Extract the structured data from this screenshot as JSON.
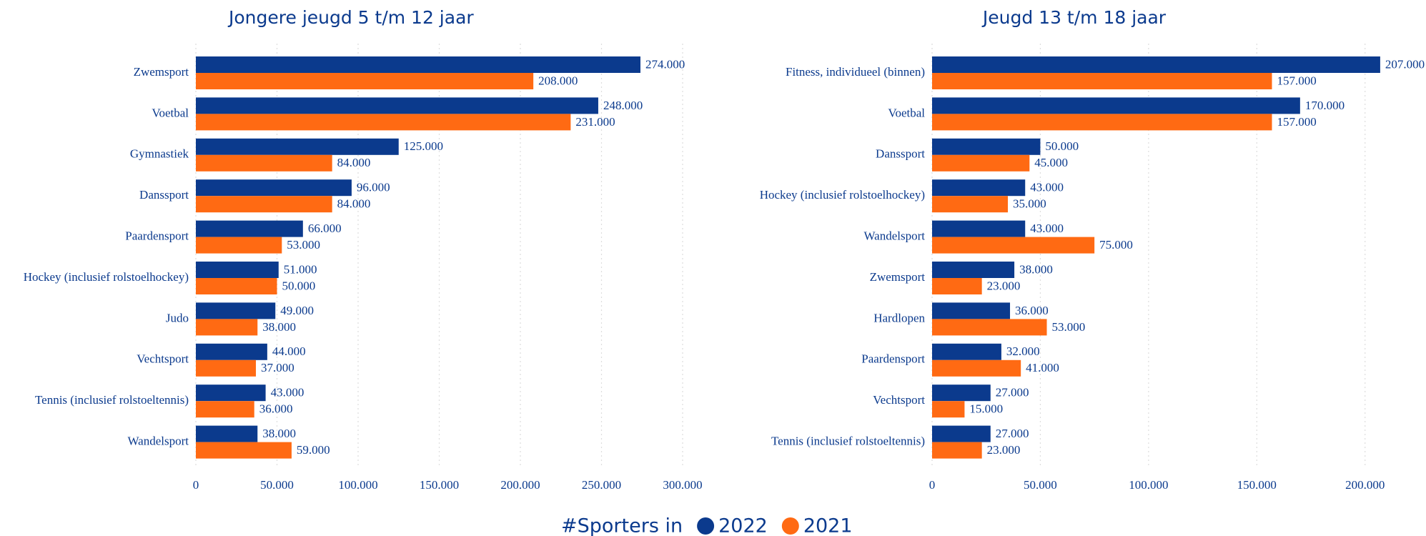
{
  "chart_data": [
    {
      "type": "bar",
      "orientation": "horizontal",
      "title": "Jongere jeugd 5 t/m 12 jaar",
      "legend_title": "#Sporters in",
      "categories": [
        "Zwemsport",
        "Voetbal",
        "Gymnastiek",
        "Danssport",
        "Paardensport",
        "Hockey (inclusief rolstoelhockey)",
        "Judo",
        "Vechtsport",
        "Tennis (inclusief rolstoeltennis)",
        "Wandelsport"
      ],
      "series": [
        {
          "name": "2022",
          "color": "#0b3a8d",
          "values": [
            274000,
            248000,
            125000,
            96000,
            66000,
            51000,
            49000,
            44000,
            43000,
            38000
          ],
          "value_labels": [
            "274.000",
            "248.000",
            "125.000",
            "96.000",
            "66.000",
            "51.000",
            "49.000",
            "44.000",
            "43.000",
            "38.000"
          ]
        },
        {
          "name": "2021",
          "color": "#ff6a13",
          "values": [
            208000,
            231000,
            84000,
            84000,
            53000,
            50000,
            38000,
            37000,
            36000,
            59000
          ],
          "value_labels": [
            "208.000",
            "231.000",
            "84.000",
            "84.000",
            "53.000",
            "50.000",
            "38.000",
            "37.000",
            "36.000",
            "59.000"
          ]
        }
      ],
      "xlim": [
        0,
        300000
      ],
      "xticks": [
        0,
        {
          "value": 50000,
          "label": "50.000"
        },
        {
          "value": 100000,
          "label": "100.000"
        },
        {
          "value": 150000,
          "label": "150.000"
        },
        {
          "value": 200000,
          "label": "200.000"
        },
        {
          "value": 250000,
          "label": "250.000"
        },
        {
          "value": 300000,
          "label": "300.000"
        }
      ],
      "grid": true
    },
    {
      "type": "bar",
      "orientation": "horizontal",
      "title": "Jeugd 13 t/m 18 jaar",
      "categories": [
        "Fitness, individueel (binnen)",
        "Voetbal",
        "Danssport",
        "Hockey (inclusief rolstoelhockey)",
        "Wandelsport",
        "Zwemsport",
        "Hardlopen",
        "Paardensport",
        "Vechtsport",
        "Tennis (inclusief rolstoeltennis)"
      ],
      "series": [
        {
          "name": "2022",
          "color": "#0b3a8d",
          "values": [
            207000,
            170000,
            50000,
            43000,
            43000,
            38000,
            36000,
            32000,
            27000,
            27000
          ],
          "value_labels": [
            "207.000",
            "170.000",
            "50.000",
            "43.000",
            "43.000",
            "38.000",
            "36.000",
            "32.000",
            "27.000",
            "27.000"
          ]
        },
        {
          "name": "2021",
          "color": "#ff6a13",
          "values": [
            157000,
            157000,
            45000,
            35000,
            75000,
            23000,
            53000,
            41000,
            15000,
            23000
          ],
          "value_labels": [
            "157.000",
            "157.000",
            "45.000",
            "35.000",
            "75.000",
            "23.000",
            "53.000",
            "41.000",
            "15.000",
            "23.000"
          ]
        }
      ],
      "xlim": [
        0,
        210000
      ],
      "xticks": [
        0,
        {
          "value": 50000,
          "label": "50.000"
        },
        {
          "value": 100000,
          "label": "100.000"
        },
        {
          "value": 150000,
          "label": "150.000"
        },
        {
          "value": 200000,
          "label": "200.000"
        }
      ],
      "grid": true
    }
  ]
}
